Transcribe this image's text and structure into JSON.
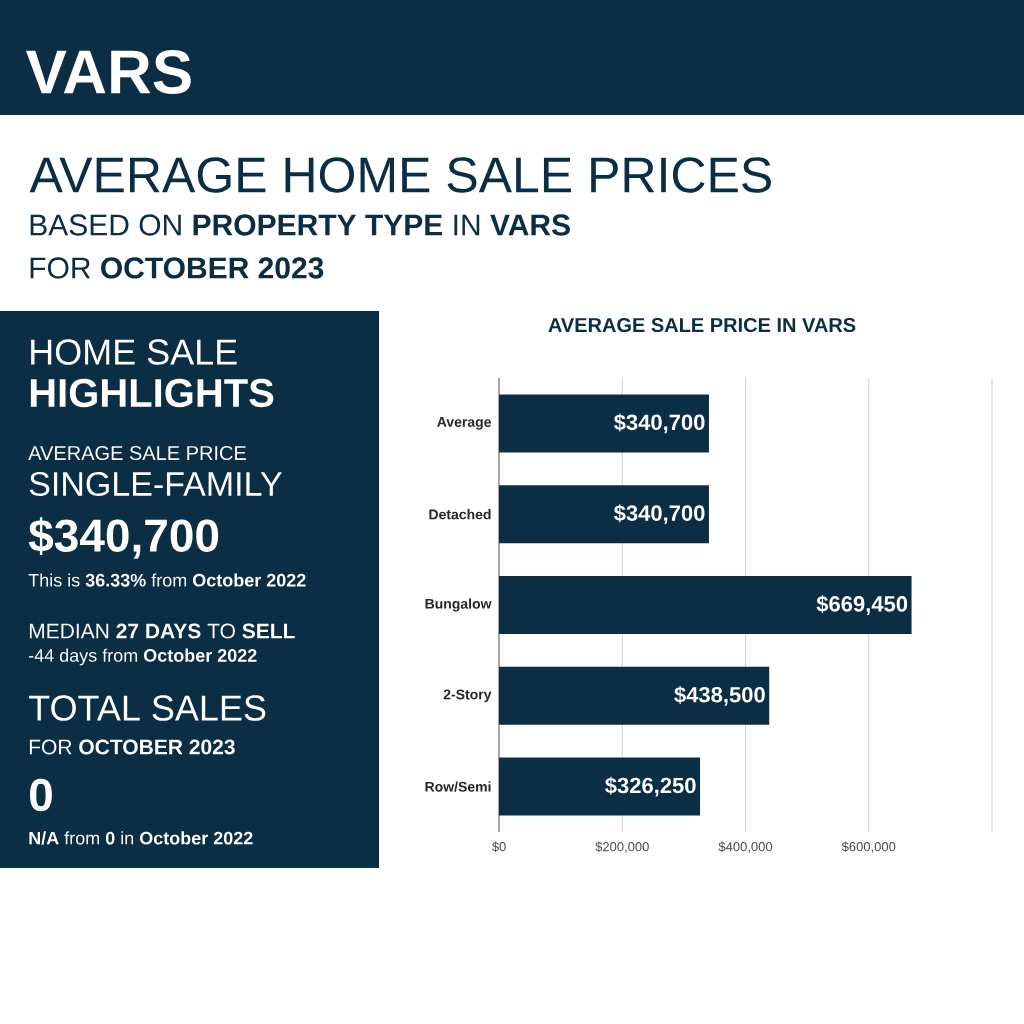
{
  "chart_data": [
    {
      "type": "other",
      "title": "VARS",
      "subtitle": "AVERAGE HOME SALE PRICES",
      "annotations": [
        "BASED ON **PROPERTY TYPE** IN **VARS**",
        "FOR **OCTOBER 2023**",
        "HOME SALE",
        "**HIGHLIGHTS**",
        "AVERAGE SALE PRICE",
        "SINGLE-FAMILY",
        "**$340,700**",
        "This is **36.33%** from **October 2022**",
        "MEDIAN **27 DAYS** TO **SELL**",
        "-44 days from **October 2022**",
        "TOTAL SALES",
        "FOR **OCTOBER 2023**",
        "**0**",
        "**N/A** from **0** in **October 2022**"
      ]
    },
    {
      "type": "bar",
      "orientation": "horizontal",
      "title": "AVERAGE SALE PRICE IN VARS",
      "categories": [
        "Average",
        "Detached",
        "Bungalow",
        "2-Story",
        "Row/Semi"
      ],
      "values": [
        340700,
        340700,
        669450,
        438500,
        326250
      ],
      "value_labels": [
        "$340,700",
        "$340,700",
        "$669,450",
        "$438,500",
        "$326,250"
      ],
      "color": "#0b2e45",
      "xlim": [
        0,
        800000
      ],
      "xticks": [
        {
          "value": 0,
          "label": "$0"
        },
        {
          "value": 200000,
          "label": "$200,000"
        },
        {
          "value": 400000,
          "label": "$400,000"
        },
        {
          "value": 600000,
          "label": "$600,000"
        },
        {
          "value": 800000,
          "label": null
        }
      ],
      "grid": "x"
    }
  ]
}
